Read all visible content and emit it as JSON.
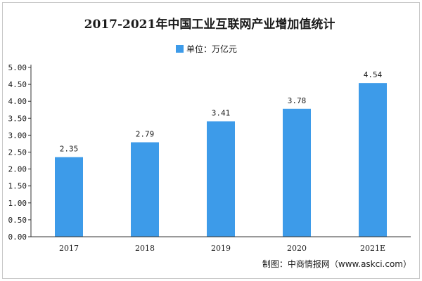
{
  "chart_data": {
    "type": "bar",
    "title": "2017-2021年中国工业互联网产业增加值统计",
    "legend": {
      "label": "单位：万亿元",
      "position": "top-center"
    },
    "categories": [
      "2017",
      "2018",
      "2019",
      "2020",
      "2021E"
    ],
    "series": [
      {
        "name": "单位：万亿元",
        "values": [
          2.35,
          2.79,
          3.41,
          3.78,
          4.54
        ]
      }
    ],
    "data_labels": [
      "2.35",
      "2.79",
      "3.41",
      "3.78",
      "4.54"
    ],
    "yticks": [
      "0.00",
      "0.50",
      "1.00",
      "1.50",
      "2.00",
      "2.50",
      "3.00",
      "3.50",
      "4.00",
      "4.50",
      "5.00"
    ],
    "ylim": [
      0,
      5
    ],
    "grid": false,
    "bar_color": "#3d9be9",
    "source": "制图：中商情报网（www.askci.com）"
  }
}
